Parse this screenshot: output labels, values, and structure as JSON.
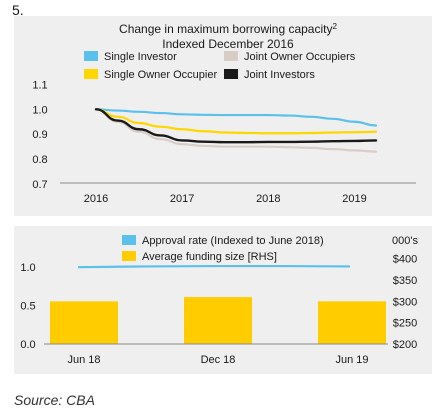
{
  "figure_number": "5.",
  "source": "Source: CBA",
  "colors": {
    "single_investor": "#5bc0eb",
    "joint_owner_occupiers": "#d9cdc7",
    "single_owner_occupier": "#ffd700",
    "joint_investors": "#1a1a1a",
    "approval_rate": "#5bc0eb",
    "funding_bars": "#ffcc00"
  },
  "chart_data": [
    {
      "type": "line",
      "title": "Change in maximum borrowing capacity",
      "title_superscript": "2",
      "subtitle": "Indexed December 2016",
      "x": [
        2016,
        2016.25,
        2016.5,
        2016.75,
        2017,
        2017.25,
        2017.5,
        2017.75,
        2018,
        2018.25,
        2018.5,
        2018.75,
        2019,
        2019.25
      ],
      "x_tick_labels": [
        "2016",
        "2017",
        "2018",
        "2019"
      ],
      "x_tick_values": [
        2016,
        2017,
        2018,
        2019
      ],
      "y_tick_labels": [
        "1.1",
        "1.0",
        "0.9",
        "0.8",
        "0.7"
      ],
      "y_tick_values": [
        1.1,
        1.0,
        0.9,
        0.8,
        0.7
      ],
      "ylim": [
        0.7,
        1.15
      ],
      "legend": "top",
      "series": [
        {
          "name": "Single Investor",
          "key": "single_investor",
          "values": [
            1.0,
            0.995,
            0.99,
            0.985,
            0.98,
            0.978,
            0.977,
            0.977,
            0.977,
            0.975,
            0.97,
            0.962,
            0.95,
            0.935
          ]
        },
        {
          "name": "Single Owner Occupier",
          "key": "single_owner_occupier",
          "values": [
            1.0,
            0.97,
            0.945,
            0.93,
            0.92,
            0.912,
            0.907,
            0.905,
            0.904,
            0.904,
            0.905,
            0.907,
            0.908,
            0.91
          ]
        },
        {
          "name": "Joint Owner Occupiers",
          "key": "joint_owner_occupiers",
          "values": [
            1.0,
            0.95,
            0.91,
            0.88,
            0.86,
            0.853,
            0.85,
            0.85,
            0.85,
            0.848,
            0.845,
            0.84,
            0.835,
            0.83
          ]
        },
        {
          "name": "Joint Investors",
          "key": "joint_investors",
          "values": [
            1.0,
            0.955,
            0.92,
            0.895,
            0.875,
            0.87,
            0.868,
            0.868,
            0.869,
            0.869,
            0.87,
            0.872,
            0.873,
            0.875
          ]
        }
      ]
    },
    {
      "type": "bar",
      "categories": [
        "Jun 18",
        "Dec 18",
        "Jun 19"
      ],
      "legend": "top",
      "series": [
        {
          "name": "Approval rate (Indexed to June 2018)",
          "type": "line",
          "axis": "left",
          "x": [
            0,
            0.5,
            1,
            1.5,
            2
          ],
          "values": [
            1.0,
            1.01,
            1.015,
            1.015,
            1.01
          ]
        },
        {
          "name": "Average funding size [RHS]",
          "type": "bar",
          "axis": "right",
          "values": [
            300,
            310,
            300
          ]
        }
      ],
      "y_left_ticks": [
        "1.0",
        "0.5",
        "0.0"
      ],
      "y_left_tick_values": [
        1.0,
        0.5,
        0.0
      ],
      "ylim_left": [
        0,
        1.25
      ],
      "y_right_label": "000's",
      "y_right_ticks": [
        "$400",
        "$350",
        "$300",
        "$250",
        "$200"
      ],
      "y_right_tick_values": [
        400,
        350,
        300,
        250,
        200
      ],
      "ylim_right": [
        200,
        425
      ]
    }
  ]
}
